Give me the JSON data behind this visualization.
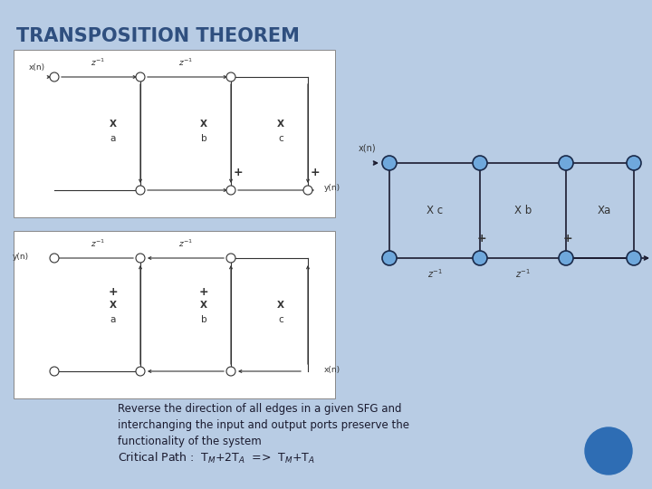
{
  "title": "TRANSPOSITION THEOREM",
  "slide_bg": "#b8cce4",
  "title_color": "#2f4f7f",
  "title_fontsize": 15,
  "body_text1": "Reverse the direction of all edges in a given SFG and\ninterchanging the input and output ports preserve the\nfunctionality of the system",
  "body_text2": "Critical Path :  T$_{M}$+2T$_{A}$  =>  T$_{M}$+T$_{A}$",
  "body_fontsize": 8.5,
  "node_color": "#6fa8dc",
  "node_edge": "#1a2a4a",
  "line_color": "#333333"
}
